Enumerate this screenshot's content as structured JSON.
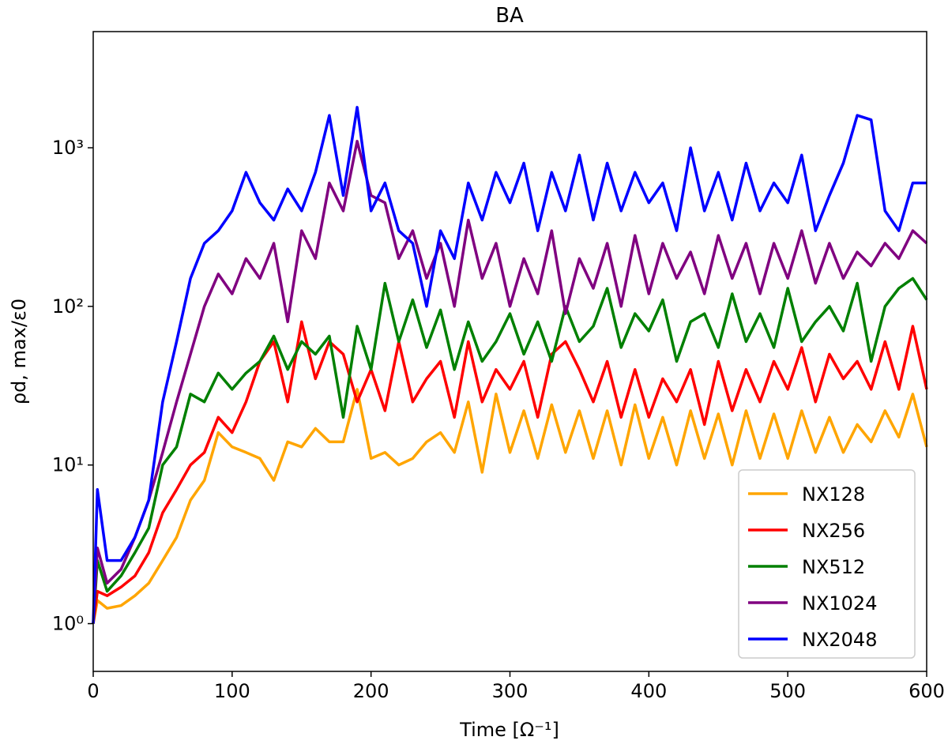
{
  "chart_data": {
    "type": "line",
    "title": "BA",
    "xlabel": "Time [Ω⁻¹]",
    "ylabel": "ρd, max/ε0",
    "log_y": true,
    "legend": "lower right",
    "xlim": [
      0,
      600
    ],
    "xticks": [
      0,
      100,
      200,
      300,
      400,
      500,
      600
    ],
    "ylim": [
      0.5,
      5400
    ],
    "yticks": [
      {
        "value": 1,
        "label": "10⁰"
      },
      {
        "value": 10,
        "label": "10¹"
      },
      {
        "value": 100,
        "label": "10²"
      },
      {
        "value": 1000,
        "label": "10³"
      }
    ],
    "x": [
      0,
      3,
      10,
      20,
      30,
      40,
      50,
      60,
      70,
      80,
      90,
      100,
      110,
      120,
      130,
      140,
      150,
      160,
      170,
      180,
      190,
      200,
      210,
      220,
      230,
      240,
      250,
      260,
      270,
      280,
      290,
      300,
      310,
      320,
      330,
      340,
      350,
      360,
      370,
      380,
      390,
      400,
      410,
      420,
      430,
      440,
      450,
      460,
      470,
      480,
      490,
      500,
      510,
      520,
      530,
      540,
      550,
      560,
      570,
      580,
      590,
      600
    ],
    "series": [
      {
        "name": "NX128",
        "color": "#ffa500",
        "values": [
          1.0,
          1.4,
          1.25,
          1.3,
          1.5,
          1.8,
          2.5,
          3.5,
          6,
          8,
          16,
          13,
          12,
          11,
          8,
          14,
          13,
          17,
          14,
          14,
          30,
          11,
          12,
          10,
          11,
          14,
          16,
          12,
          25,
          9,
          28,
          12,
          22,
          11,
          24,
          12,
          22,
          11,
          22,
          10,
          24,
          11,
          20,
          10,
          22,
          11,
          21,
          10,
          22,
          11,
          21,
          11,
          22,
          12,
          20,
          12,
          18,
          14,
          22,
          15,
          28,
          13
        ]
      },
      {
        "name": "NX256",
        "color": "#ff0000",
        "values": [
          1,
          1.6,
          1.5,
          1.7,
          2,
          2.8,
          5,
          7,
          10,
          12,
          20,
          16,
          25,
          45,
          60,
          25,
          80,
          35,
          60,
          50,
          25,
          40,
          22,
          60,
          25,
          35,
          45,
          20,
          60,
          25,
          40,
          30,
          45,
          20,
          50,
          60,
          40,
          25,
          45,
          20,
          40,
          20,
          35,
          25,
          40,
          18,
          45,
          22,
          40,
          25,
          45,
          30,
          55,
          25,
          50,
          35,
          45,
          30,
          60,
          30,
          75,
          30
        ]
      },
      {
        "name": "NX512",
        "color": "#008000",
        "values": [
          1,
          2.5,
          1.6,
          2,
          2.8,
          4,
          10,
          13,
          28,
          25,
          38,
          30,
          38,
          45,
          65,
          40,
          60,
          50,
          65,
          20,
          75,
          40,
          140,
          60,
          110,
          55,
          95,
          40,
          80,
          45,
          60,
          90,
          50,
          80,
          45,
          100,
          60,
          75,
          130,
          55,
          90,
          70,
          110,
          45,
          80,
          90,
          55,
          120,
          60,
          90,
          55,
          130,
          60,
          80,
          100,
          70,
          140,
          45,
          100,
          130,
          150,
          110
        ]
      },
      {
        "name": "NX1024",
        "color": "#800080",
        "values": [
          1,
          3,
          1.8,
          2.2,
          3.5,
          6,
          12,
          25,
          50,
          100,
          160,
          120,
          200,
          150,
          250,
          80,
          300,
          200,
          600,
          400,
          1100,
          500,
          450,
          200,
          300,
          150,
          250,
          100,
          350,
          150,
          250,
          100,
          200,
          120,
          300,
          90,
          200,
          130,
          250,
          100,
          280,
          120,
          250,
          150,
          220,
          120,
          280,
          150,
          250,
          120,
          250,
          150,
          300,
          140,
          250,
          150,
          220,
          180,
          250,
          200,
          300,
          250
        ]
      },
      {
        "name": "NX2048",
        "color": "#0000ff",
        "values": [
          1,
          7,
          2.5,
          2.5,
          3.5,
          6,
          25,
          60,
          150,
          250,
          300,
          400,
          700,
          450,
          350,
          550,
          400,
          700,
          1600,
          500,
          1800,
          400,
          600,
          300,
          250,
          100,
          300,
          200,
          600,
          350,
          700,
          450,
          800,
          300,
          700,
          400,
          900,
          350,
          800,
          400,
          700,
          450,
          600,
          300,
          1000,
          400,
          700,
          350,
          800,
          400,
          600,
          450,
          900,
          300,
          500,
          800,
          1600,
          1500,
          400,
          300,
          600,
          600
        ]
      }
    ]
  }
}
